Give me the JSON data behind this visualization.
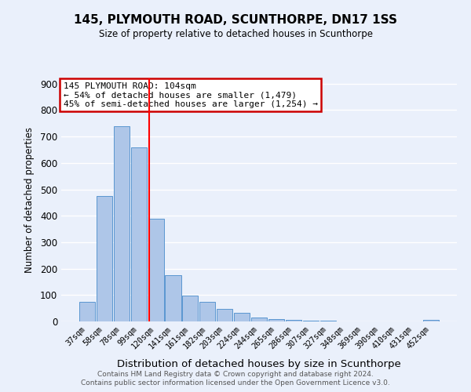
{
  "title": "145, PLYMOUTH ROAD, SCUNTHORPE, DN17 1SS",
  "subtitle": "Size of property relative to detached houses in Scunthorpe",
  "xlabel": "Distribution of detached houses by size in Scunthorpe",
  "ylabel": "Number of detached properties",
  "bar_labels": [
    "37sqm",
    "58sqm",
    "78sqm",
    "99sqm",
    "120sqm",
    "141sqm",
    "161sqm",
    "182sqm",
    "203sqm",
    "224sqm",
    "244sqm",
    "265sqm",
    "286sqm",
    "307sqm",
    "327sqm",
    "348sqm",
    "369sqm",
    "390sqm",
    "410sqm",
    "431sqm",
    "452sqm"
  ],
  "bar_values": [
    75,
    475,
    740,
    660,
    390,
    175,
    97,
    75,
    47,
    33,
    15,
    10,
    5,
    3,
    2,
    1,
    1,
    1,
    1,
    1,
    5
  ],
  "bar_color": "#aec6e8",
  "bar_edgecolor": "#5a96d0",
  "background_color": "#eaf0fb",
  "grid_color": "#ffffff",
  "vline_x_index": 3.63,
  "vline_color": "red",
  "annotation_line1": "145 PLYMOUTH ROAD: 104sqm",
  "annotation_line2": "← 54% of detached houses are smaller (1,479)",
  "annotation_line3": "45% of semi-detached houses are larger (1,254) →",
  "annotation_box_edgecolor": "#cc0000",
  "annotation_box_facecolor": "#ffffff",
  "ylim": [
    0,
    920
  ],
  "yticks": [
    0,
    100,
    200,
    300,
    400,
    500,
    600,
    700,
    800,
    900
  ],
  "footer_line1": "Contains HM Land Registry data © Crown copyright and database right 2024.",
  "footer_line2": "Contains public sector information licensed under the Open Government Licence v3.0."
}
